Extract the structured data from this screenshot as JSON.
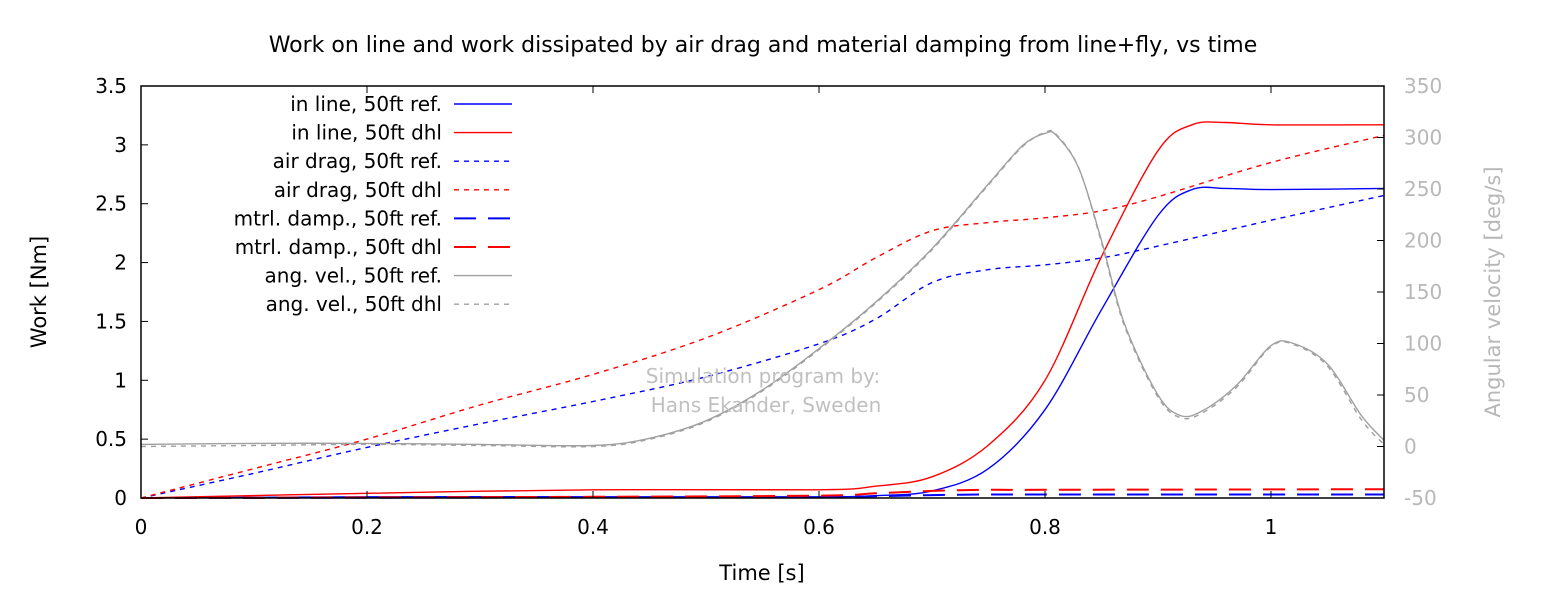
{
  "chart_data": {
    "type": "line",
    "title": "Work on line and work dissipated by air drag and material damping from line+fly, vs time",
    "xlabel": "Time [s]",
    "ylabel": "Work [Nm]",
    "y2label": "Angular velocity [deg/s]",
    "xlim": [
      0,
      1.1
    ],
    "ylim": [
      0,
      3.5
    ],
    "y2lim": [
      -50,
      350
    ],
    "xticks": [
      "0",
      "0.2",
      "0.4",
      "0.6",
      "0.8",
      "1"
    ],
    "xtick_values": [
      0,
      0.2,
      0.4,
      0.6,
      0.8,
      1.0
    ],
    "yticks": [
      "0",
      "0.5",
      "1",
      "1.5",
      "2",
      "2.5",
      "3",
      "3.5"
    ],
    "ytick_values": [
      0,
      0.5,
      1,
      1.5,
      2,
      2.5,
      3,
      3.5
    ],
    "y2ticks": [
      "-50",
      "0",
      "50",
      "100",
      "150",
      "200",
      "250",
      "300",
      "350"
    ],
    "y2tick_values": [
      -50,
      0,
      50,
      100,
      150,
      200,
      250,
      300,
      350
    ],
    "legend_position": "top-left",
    "grid": false,
    "watermark": [
      "Simulation program by:",
      "Hans Ekander, Sweden"
    ],
    "colors": {
      "ref": "#0000ff",
      "dhl": "#ff0000",
      "angvel": "#a0a0a0"
    },
    "series": [
      {
        "name": "in line, 50ft ref.",
        "axis": "y",
        "color": "#0000ff",
        "style": "solid",
        "x": [
          0,
          0.2,
          0.4,
          0.6,
          0.65,
          0.7,
          0.75,
          0.8,
          0.85,
          0.9,
          0.93,
          0.96,
          1.0,
          1.1
        ],
        "y": [
          0,
          0.01,
          0.01,
          0.01,
          0.02,
          0.06,
          0.25,
          0.75,
          1.6,
          2.4,
          2.62,
          2.63,
          2.62,
          2.63
        ]
      },
      {
        "name": "in line, 50ft dhl",
        "axis": "y",
        "color": "#ff0000",
        "style": "solid",
        "x": [
          0,
          0.2,
          0.4,
          0.6,
          0.65,
          0.7,
          0.75,
          0.8,
          0.85,
          0.9,
          0.93,
          0.96,
          1.0,
          1.1
        ],
        "y": [
          0,
          0.04,
          0.07,
          0.07,
          0.1,
          0.18,
          0.45,
          1.0,
          2.05,
          2.95,
          3.17,
          3.19,
          3.17,
          3.17
        ]
      },
      {
        "name": "air drag, 50ft ref.",
        "axis": "y",
        "color": "#0000ff",
        "style": "dotted",
        "x": [
          0,
          0.1,
          0.2,
          0.3,
          0.4,
          0.5,
          0.6,
          0.65,
          0.7,
          0.75,
          0.8,
          0.85,
          0.9,
          1.0,
          1.1
        ],
        "y": [
          0,
          0.21,
          0.43,
          0.63,
          0.82,
          1.03,
          1.31,
          1.52,
          1.83,
          1.94,
          1.98,
          2.04,
          2.14,
          2.36,
          2.57
        ]
      },
      {
        "name": "air drag, 50ft dhl",
        "axis": "y",
        "color": "#ff0000",
        "style": "dotted",
        "x": [
          0,
          0.1,
          0.2,
          0.3,
          0.4,
          0.5,
          0.6,
          0.65,
          0.7,
          0.75,
          0.8,
          0.85,
          0.9,
          1.0,
          1.1
        ],
        "y": [
          0,
          0.25,
          0.5,
          0.79,
          1.05,
          1.36,
          1.77,
          2.04,
          2.27,
          2.34,
          2.38,
          2.44,
          2.56,
          2.85,
          3.08
        ]
      },
      {
        "name": "mtrl. damp., 50ft ref.",
        "axis": "y",
        "color": "#0000ff",
        "style": "dashed",
        "x": [
          0,
          0.4,
          0.6,
          0.65,
          0.7,
          0.75,
          0.8,
          1.1
        ],
        "y": [
          0,
          0.005,
          0.008,
          0.015,
          0.025,
          0.03,
          0.03,
          0.03
        ]
      },
      {
        "name": "mtrl. damp., 50ft dhl",
        "axis": "y",
        "color": "#ff0000",
        "style": "dashed",
        "x": [
          0,
          0.4,
          0.6,
          0.65,
          0.7,
          0.75,
          0.8,
          1.1
        ],
        "y": [
          0,
          0.01,
          0.02,
          0.04,
          0.06,
          0.07,
          0.07,
          0.075
        ]
      },
      {
        "name": "ang. vel., 50ft ref.",
        "axis": "y2",
        "color": "#a0a0a0",
        "style": "solid",
        "x": [
          0,
          0.1,
          0.2,
          0.3,
          0.4,
          0.45,
          0.5,
          0.55,
          0.6,
          0.65,
          0.7,
          0.75,
          0.78,
          0.8,
          0.81,
          0.83,
          0.85,
          0.87,
          0.9,
          0.92,
          0.94,
          0.97,
          1.0,
          1.02,
          1.05,
          1.08,
          1.1
        ],
        "y": [
          2,
          3,
          3,
          2,
          1,
          8,
          25,
          55,
          95,
          140,
          192,
          255,
          292,
          304,
          302,
          270,
          200,
          120,
          50,
          30,
          35,
          60,
          98,
          100,
          80,
          30,
          6
        ]
      },
      {
        "name": "ang. vel., 50ft dhl",
        "axis": "y2",
        "color": "#a0a0a0",
        "style": "dotted",
        "x": [
          0,
          0.1,
          0.2,
          0.3,
          0.4,
          0.45,
          0.5,
          0.55,
          0.6,
          0.65,
          0.7,
          0.75,
          0.78,
          0.8,
          0.81,
          0.83,
          0.85,
          0.87,
          0.9,
          0.92,
          0.94,
          0.97,
          1.0,
          1.02,
          1.05,
          1.08,
          1.1
        ],
        "y": [
          0,
          1,
          2,
          1,
          0,
          7,
          24,
          54,
          94,
          139,
          191,
          254,
          291,
          305,
          303,
          270,
          198,
          118,
          48,
          28,
          33,
          58,
          97,
          99,
          78,
          26,
          2
        ]
      }
    ]
  }
}
